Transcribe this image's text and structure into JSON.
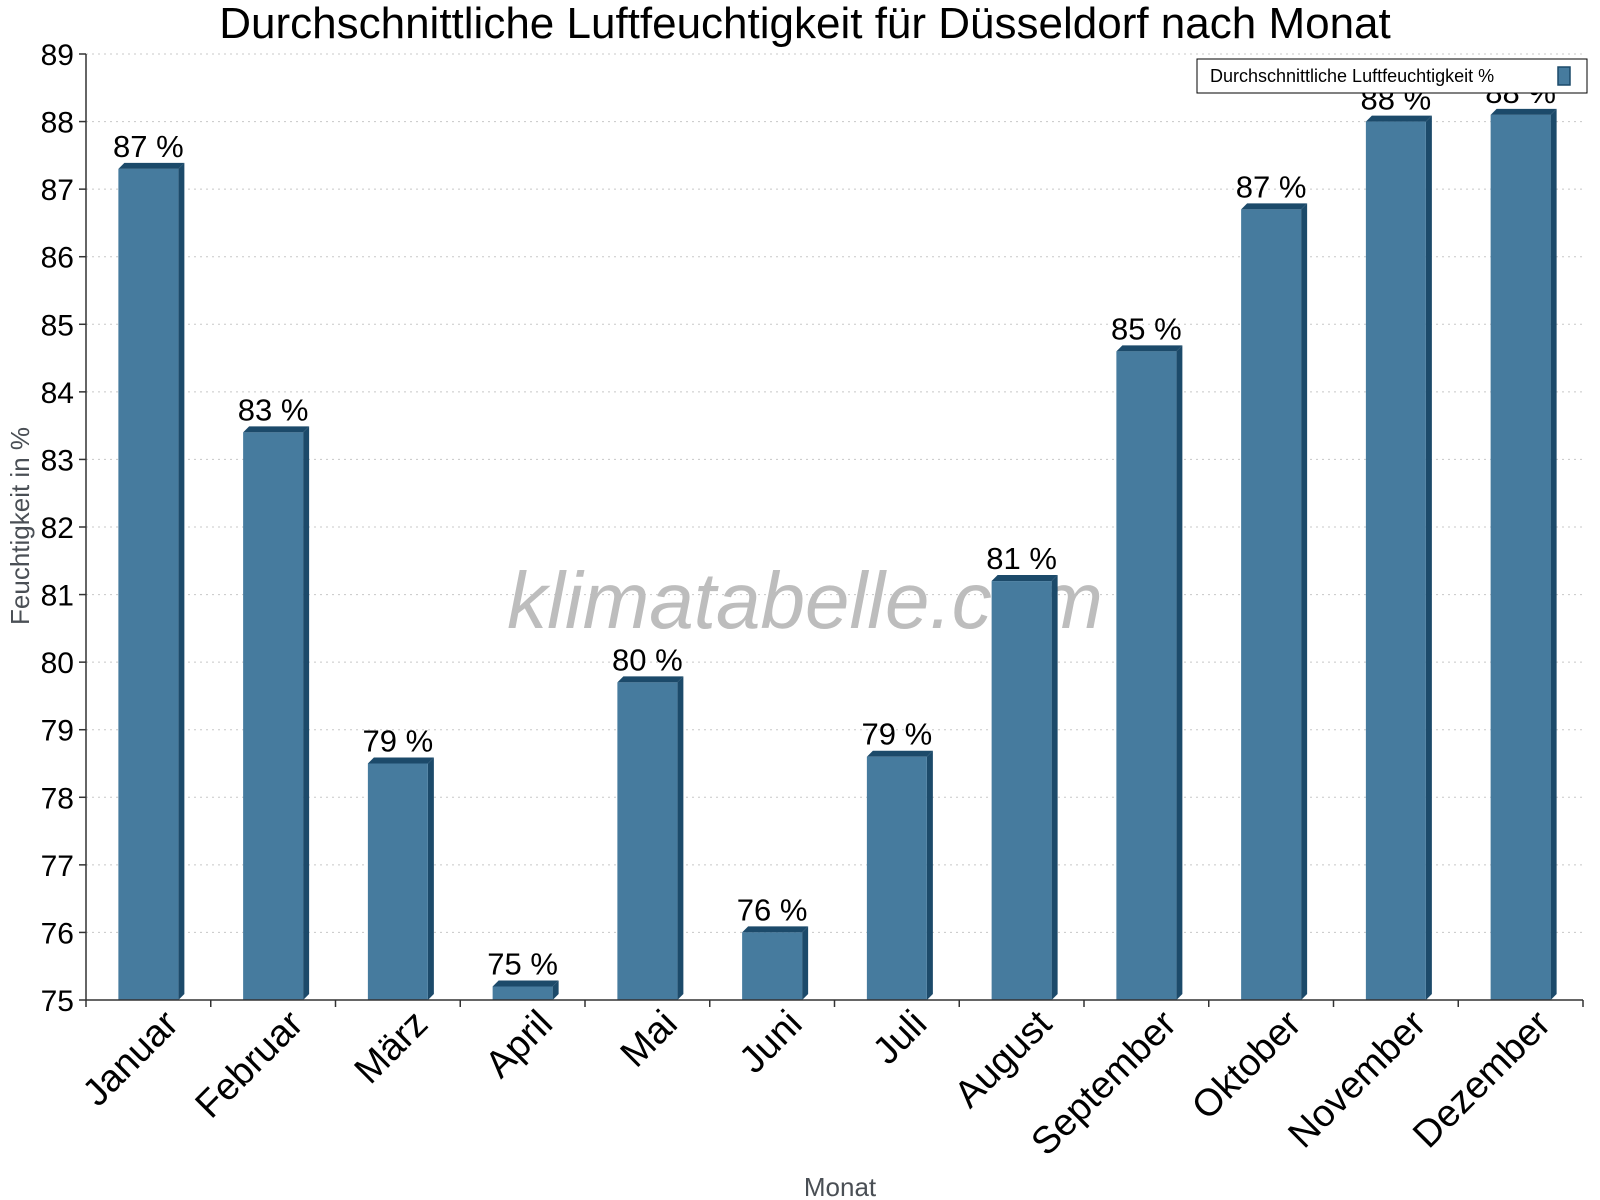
{
  "chart_data": {
    "type": "bar",
    "title": "Durchschnittliche Luftfeuchtigkeit für Düsseldorf nach Monat",
    "xlabel": "Monat",
    "ylabel": "Feuchtigkeit in %",
    "ylim": [
      75,
      89
    ],
    "yticks": [
      75,
      76,
      77,
      78,
      79,
      80,
      81,
      82,
      83,
      84,
      85,
      86,
      87,
      88,
      89
    ],
    "grid": true,
    "legend_position": "top-right",
    "categories": [
      "Januar",
      "Februar",
      "März",
      "April",
      "Mai",
      "Juni",
      "Juli",
      "August",
      "September",
      "Oktober",
      "November",
      "Dezember"
    ],
    "series": [
      {
        "name": "Durchschnittliche Luftfeuchtigkeit %",
        "color": "#467b9e",
        "values": [
          87.3,
          83.4,
          78.5,
          75.2,
          79.7,
          76.0,
          78.6,
          81.2,
          84.6,
          86.7,
          88.0,
          88.1
        ],
        "labels": [
          "87 %",
          "83 %",
          "79 %",
          "75 %",
          "80 %",
          "76 %",
          "79 %",
          "81 %",
          "85 %",
          "87 %",
          "88 %",
          "88 %"
        ]
      }
    ],
    "watermark": "klimatabelle.com"
  }
}
